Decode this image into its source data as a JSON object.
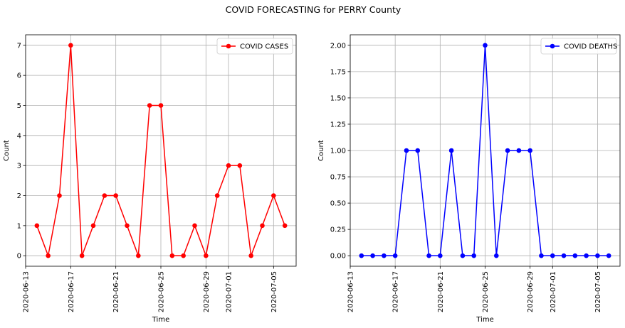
{
  "figure": {
    "suptitle": "COVID FORECASTING for PERRY County"
  },
  "chart_data": [
    {
      "type": "line",
      "xlabel": "Time",
      "ylabel": "Count",
      "x_ticks": [
        "2020-06-13",
        "2020-06-17",
        "2020-06-21",
        "2020-06-25",
        "2020-06-29",
        "2020-07-01",
        "2020-07-05"
      ],
      "y_ticks": [
        "0",
        "1",
        "2",
        "3",
        "4",
        "5",
        "6",
        "7"
      ],
      "x_range": [
        "2020-06-13",
        "2020-07-07"
      ],
      "ylim": [
        -0.35,
        7.35
      ],
      "grid": true,
      "legend_position": "upper right",
      "series": [
        {
          "name": "COVID CASES",
          "color": "#ff0000",
          "marker": "circle",
          "x": [
            "2020-06-14",
            "2020-06-15",
            "2020-06-16",
            "2020-06-17",
            "2020-06-18",
            "2020-06-19",
            "2020-06-20",
            "2020-06-21",
            "2020-06-22",
            "2020-06-23",
            "2020-06-24",
            "2020-06-25",
            "2020-06-26",
            "2020-06-27",
            "2020-06-28",
            "2020-06-29",
            "2020-06-30",
            "2020-07-01",
            "2020-07-02",
            "2020-07-03",
            "2020-07-04",
            "2020-07-05",
            "2020-07-06"
          ],
          "values": [
            1,
            0,
            2,
            7,
            0,
            1,
            2,
            2,
            1,
            0,
            5,
            5,
            0,
            0,
            1,
            0,
            2,
            3,
            3,
            0,
            1,
            2,
            1
          ]
        }
      ]
    },
    {
      "type": "line",
      "xlabel": "Time",
      "ylabel": "Count",
      "x_ticks": [
        "2020-06-13",
        "2020-06-17",
        "2020-06-21",
        "2020-06-25",
        "2020-06-29",
        "2020-07-01",
        "2020-07-05"
      ],
      "y_ticks": [
        "0.00",
        "0.25",
        "0.50",
        "0.75",
        "1.00",
        "1.25",
        "1.50",
        "1.75",
        "2.00"
      ],
      "x_range": [
        "2020-06-13",
        "2020-07-07"
      ],
      "ylim": [
        -0.1,
        2.1
      ],
      "grid": true,
      "legend_position": "upper right",
      "series": [
        {
          "name": "COVID DEATHS",
          "color": "#0000ff",
          "marker": "circle",
          "x": [
            "2020-06-14",
            "2020-06-15",
            "2020-06-16",
            "2020-06-17",
            "2020-06-18",
            "2020-06-19",
            "2020-06-20",
            "2020-06-21",
            "2020-06-22",
            "2020-06-23",
            "2020-06-24",
            "2020-06-25",
            "2020-06-26",
            "2020-06-27",
            "2020-06-28",
            "2020-06-29",
            "2020-06-30",
            "2020-07-01",
            "2020-07-02",
            "2020-07-03",
            "2020-07-04",
            "2020-07-05",
            "2020-07-06"
          ],
          "values": [
            0,
            0,
            0,
            0,
            1,
            1,
            0,
            0,
            1,
            0,
            0,
            2,
            0,
            1,
            1,
            1,
            0,
            0,
            0,
            0,
            0,
            0,
            0
          ]
        }
      ]
    }
  ]
}
